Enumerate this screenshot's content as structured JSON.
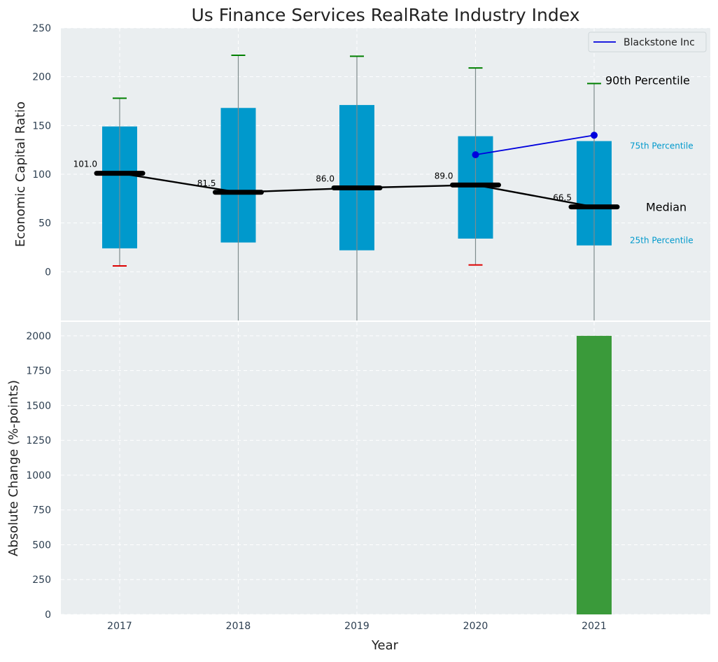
{
  "chart_data": [
    {
      "type": "box",
      "title": "Us Finance Services RealRate Industry Index",
      "ylabel": "Economic Capital Ratio",
      "ylim": [
        -50,
        250
      ],
      "yticks": [
        0,
        50,
        100,
        150,
        200,
        250
      ],
      "grid": true,
      "legend_position": "top-right",
      "categories": [
        "2017",
        "2018",
        "2019",
        "2020",
        "2021"
      ],
      "percentile_boxes": [
        {
          "year": "2017",
          "p10": 6,
          "p25": 24,
          "median": 101.0,
          "p75": 149,
          "p90": 178
        },
        {
          "year": "2018",
          "p10": -55,
          "p25": 30,
          "median": 81.5,
          "p75": 168,
          "p90": 222
        },
        {
          "year": "2019",
          "p10": -55,
          "p25": 22,
          "median": 86.0,
          "p75": 171,
          "p90": 221
        },
        {
          "year": "2020",
          "p10": 7,
          "p25": 34,
          "median": 89.0,
          "p75": 139,
          "p90": 209
        },
        {
          "year": "2021",
          "p10": -55,
          "p25": 27,
          "median": 66.5,
          "p75": 134,
          "p90": 193
        }
      ],
      "median_labels": [
        "101.0",
        "81.5",
        "86.0",
        "89.0",
        "66.5"
      ],
      "series": [
        {
          "name": "Blackstone Inc",
          "x": [
            "2020",
            "2021"
          ],
          "values": [
            120,
            140
          ],
          "color": "#0000dd"
        }
      ],
      "annotations": {
        "p90": "90th Percentile",
        "p75": "75th Percentile",
        "median": "Median",
        "p25": "25th Percentile"
      },
      "colors": {
        "box": "#0099cc",
        "median": "#000000",
        "whisker_top": "#008000",
        "whisker_bottom": "#dd0000",
        "background": "#eaeef0"
      }
    },
    {
      "type": "bar",
      "ylabel": "Absolute Change (%-points)",
      "xlabel": "Year",
      "ylim": [
        0,
        2100
      ],
      "yticks": [
        0,
        250,
        500,
        750,
        1000,
        1250,
        1500,
        1750,
        2000
      ],
      "grid": true,
      "categories": [
        "2017",
        "2018",
        "2019",
        "2020",
        "2021"
      ],
      "values": [
        0,
        0,
        0,
        0,
        2000
      ],
      "colors": {
        "bar": "#3a9a3a",
        "background": "#eaeef0"
      }
    }
  ]
}
